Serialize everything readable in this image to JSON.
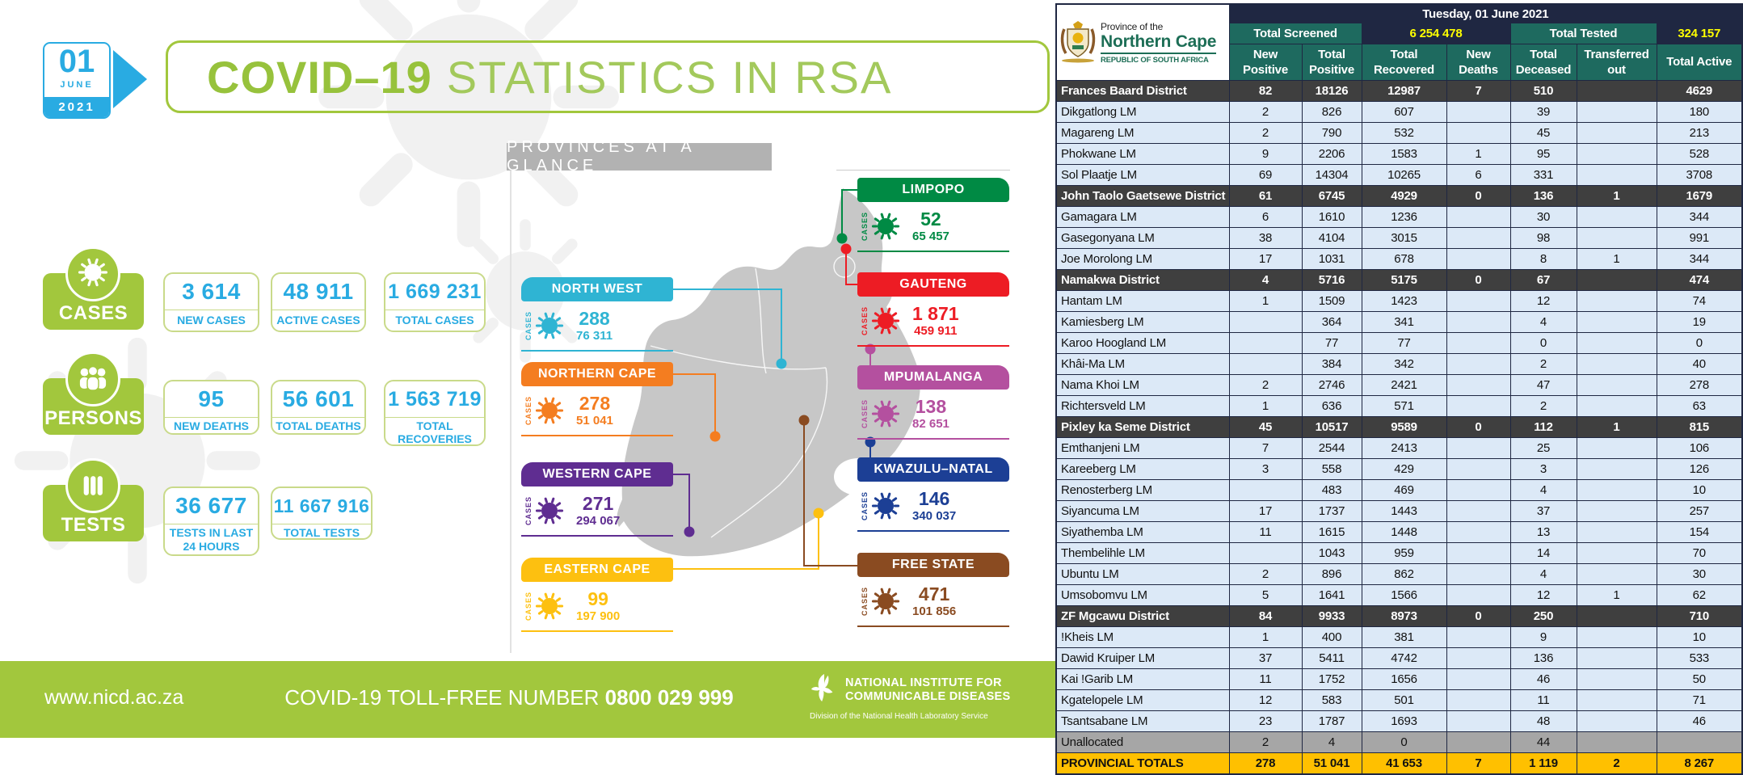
{
  "infographic": {
    "date": {
      "day": "01",
      "month": "JUNE",
      "year": "2021"
    },
    "title": {
      "primary": "COVID–19",
      "secondary": "STATISTICS IN RSA"
    },
    "stats": [
      {
        "label": "CASES",
        "boxes": [
          {
            "value": "3 614",
            "label": "NEW CASES"
          },
          {
            "value": "48 911",
            "label": "ACTIVE CASES"
          },
          {
            "value": "1 669 231",
            "label": "TOTAL CASES"
          }
        ]
      },
      {
        "label": "PERSONS",
        "boxes": [
          {
            "value": "95",
            "label": "NEW DEATHS"
          },
          {
            "value": "56 601",
            "label": "TOTAL DEATHS"
          },
          {
            "value": "1 563 719",
            "label": "TOTAL RECOVERIES"
          }
        ]
      },
      {
        "label": "TESTS",
        "boxes": [
          {
            "value": "36 677",
            "label": "TESTS IN LAST 24 HOURS"
          },
          {
            "value": "11 667 916",
            "label": "TOTAL TESTS"
          }
        ]
      }
    ],
    "map": {
      "banner": "PROVINCES AT A GLANCE",
      "cases_label": "CASES",
      "provinces": [
        {
          "name": "NORTH WEST",
          "new": "288",
          "total": "76 311",
          "color": "#2fb4d3"
        },
        {
          "name": "NORTHERN CAPE",
          "new": "278",
          "total": "51 041",
          "color": "#f47d20"
        },
        {
          "name": "WESTERN CAPE",
          "new": "271",
          "total": "294 067",
          "color": "#5f2d91"
        },
        {
          "name": "EASTERN CAPE",
          "new": "99",
          "total": "197 900",
          "color": "#fdc010"
        },
        {
          "name": "LIMPOPO",
          "new": "52",
          "total": "65 457",
          "color": "#008a44"
        },
        {
          "name": "GAUTENG",
          "new": "1 871",
          "total": "459 911",
          "color": "#ed1c24"
        },
        {
          "name": "MPUMALANGA",
          "new": "138",
          "total": "82 651",
          "color": "#b4509f"
        },
        {
          "name": "KWAZULU–NATAL",
          "new": "146",
          "total": "340 037",
          "color": "#1c3f95"
        },
        {
          "name": "FREE STATE",
          "new": "471",
          "total": "101 856",
          "color": "#8a4b21"
        }
      ]
    },
    "footer": {
      "website": "www.nicd.ac.za",
      "tollfree_label": "COVID-19 TOLL-FREE NUMBER",
      "tollfree_number": "0800 029 999",
      "org_line1": "NATIONAL INSTITUTE FOR",
      "org_line2": "COMMUNICABLE DISEASES",
      "org_sub": "Division of the National Health Laboratory Service"
    }
  },
  "table": {
    "logo": {
      "line1": "Province of the",
      "line2": "Northern Cape",
      "line3": "REPUBLIC OF SOUTH AFRICA"
    },
    "date_header": "Tuesday, 01 June 2021",
    "screened_label": "Total Screened",
    "screened_value": "6 254 478",
    "tested_label": "Total Tested",
    "tested_value": "324 157",
    "columns": [
      "New Positive",
      "Total Positive",
      "Total Recovered",
      "New Deaths",
      "Total Deceased",
      "Transferred out",
      "Total Active"
    ],
    "rows": [
      {
        "name": "Frances Baard District",
        "type": "district",
        "values": [
          "82",
          "18126",
          "12987",
          "7",
          "510",
          "",
          "4629"
        ]
      },
      {
        "name": "Dikgatlong LM",
        "type": "lm",
        "values": [
          "2",
          "826",
          "607",
          "",
          "39",
          "",
          "180"
        ]
      },
      {
        "name": "Magareng LM",
        "type": "lm",
        "values": [
          "2",
          "790",
          "532",
          "",
          "45",
          "",
          "213"
        ]
      },
      {
        "name": "Phokwane LM",
        "type": "lm",
        "values": [
          "9",
          "2206",
          "1583",
          "1",
          "95",
          "",
          "528"
        ]
      },
      {
        "name": "Sol Plaatje LM",
        "type": "lm",
        "values": [
          "69",
          "14304",
          "10265",
          "6",
          "331",
          "",
          "3708"
        ]
      },
      {
        "name": "John Taolo Gaetsewe District",
        "type": "district",
        "values": [
          "61",
          "6745",
          "4929",
          "0",
          "136",
          "1",
          "1679"
        ]
      },
      {
        "name": "Gamagara LM",
        "type": "lm",
        "values": [
          "6",
          "1610",
          "1236",
          "",
          "30",
          "",
          "344"
        ]
      },
      {
        "name": "Gasegonyana LM",
        "type": "lm",
        "values": [
          "38",
          "4104",
          "3015",
          "",
          "98",
          "",
          "991"
        ]
      },
      {
        "name": "Joe Morolong LM",
        "type": "lm",
        "values": [
          "17",
          "1031",
          "678",
          "",
          "8",
          "1",
          "344"
        ]
      },
      {
        "name": "Namakwa District",
        "type": "district",
        "values": [
          "4",
          "5716",
          "5175",
          "0",
          "67",
          "",
          "474"
        ]
      },
      {
        "name": "Hantam LM",
        "type": "lm",
        "values": [
          "1",
          "1509",
          "1423",
          "",
          "12",
          "",
          "74"
        ]
      },
      {
        "name": "Kamiesberg LM",
        "type": "lm",
        "values": [
          "",
          "364",
          "341",
          "",
          "4",
          "",
          "19"
        ]
      },
      {
        "name": "Karoo Hoogland LM",
        "type": "lm",
        "values": [
          "",
          "77",
          "77",
          "",
          "0",
          "",
          "0"
        ]
      },
      {
        "name": "Khâi-Ma LM",
        "type": "lm",
        "values": [
          "",
          "384",
          "342",
          "",
          "2",
          "",
          "40"
        ]
      },
      {
        "name": "Nama Khoi LM",
        "type": "lm",
        "values": [
          "2",
          "2746",
          "2421",
          "",
          "47",
          "",
          "278"
        ]
      },
      {
        "name": "Richtersveld LM",
        "type": "lm",
        "values": [
          "1",
          "636",
          "571",
          "",
          "2",
          "",
          "63"
        ]
      },
      {
        "name": "Pixley ka Seme District",
        "type": "district",
        "values": [
          "45",
          "10517",
          "9589",
          "0",
          "112",
          "1",
          "815"
        ]
      },
      {
        "name": "Emthanjeni LM",
        "type": "lm",
        "values": [
          "7",
          "2544",
          "2413",
          "",
          "25",
          "",
          "106"
        ]
      },
      {
        "name": "Kareeberg LM",
        "type": "lm",
        "values": [
          "3",
          "558",
          "429",
          "",
          "3",
          "",
          "126"
        ]
      },
      {
        "name": "Renosterberg LM",
        "type": "lm",
        "values": [
          "",
          "483",
          "469",
          "",
          "4",
          "",
          "10"
        ]
      },
      {
        "name": "Siyancuma LM",
        "type": "lm",
        "values": [
          "17",
          "1737",
          "1443",
          "",
          "37",
          "",
          "257"
        ]
      },
      {
        "name": "Siyathemba LM",
        "type": "lm",
        "values": [
          "11",
          "1615",
          "1448",
          "",
          "13",
          "",
          "154"
        ]
      },
      {
        "name": "Thembelihle LM",
        "type": "lm",
        "values": [
          "",
          "1043",
          "959",
          "",
          "14",
          "",
          "70"
        ]
      },
      {
        "name": "Ubuntu LM",
        "type": "lm",
        "values": [
          "2",
          "896",
          "862",
          "",
          "4",
          "",
          "30"
        ]
      },
      {
        "name": "Umsobomvu LM",
        "type": "lm",
        "values": [
          "5",
          "1641",
          "1566",
          "",
          "12",
          "1",
          "62"
        ]
      },
      {
        "name": "ZF Mgcawu District",
        "type": "district",
        "values": [
          "84",
          "9933",
          "8973",
          "0",
          "250",
          "",
          "710"
        ]
      },
      {
        "name": "!Kheis LM",
        "type": "lm",
        "values": [
          "1",
          "400",
          "381",
          "",
          "9",
          "",
          "10"
        ]
      },
      {
        "name": "Dawid Kruiper LM",
        "type": "lm",
        "values": [
          "37",
          "5411",
          "4742",
          "",
          "136",
          "",
          "533"
        ]
      },
      {
        "name": "Kai !Garib LM",
        "type": "lm",
        "values": [
          "11",
          "1752",
          "1656",
          "",
          "46",
          "",
          "50"
        ]
      },
      {
        "name": "Kgatelopele LM",
        "type": "lm",
        "values": [
          "12",
          "583",
          "501",
          "",
          "11",
          "",
          "71"
        ]
      },
      {
        "name": "Tsantsabane LM",
        "type": "lm",
        "values": [
          "23",
          "1787",
          "1693",
          "",
          "48",
          "",
          "46"
        ]
      },
      {
        "name": "Unallocated",
        "type": "unallocated",
        "values": [
          "2",
          "4",
          "0",
          "",
          "44",
          "",
          ""
        ]
      },
      {
        "name": "PROVINCIAL TOTALS",
        "type": "totals",
        "values": [
          "278",
          "51 041",
          "41 653",
          "7",
          "1 119",
          "2",
          "8 267"
        ]
      }
    ]
  },
  "colors": {
    "green": "#a2c73d",
    "blue": "#29abe2",
    "box_border": "#c9da8a",
    "banner_gray": "#b2b2b2",
    "map_gray": "#c7c7c7",
    "table_navy": "#1f2742",
    "table_teal": "#1e6a5f",
    "row_blue": "#dce9f7",
    "district_dark": "#3f3f3f",
    "unallocated_gray": "#a6a6a6",
    "totals_orange": "#ffc000",
    "value_yellow": "#ffff00"
  }
}
